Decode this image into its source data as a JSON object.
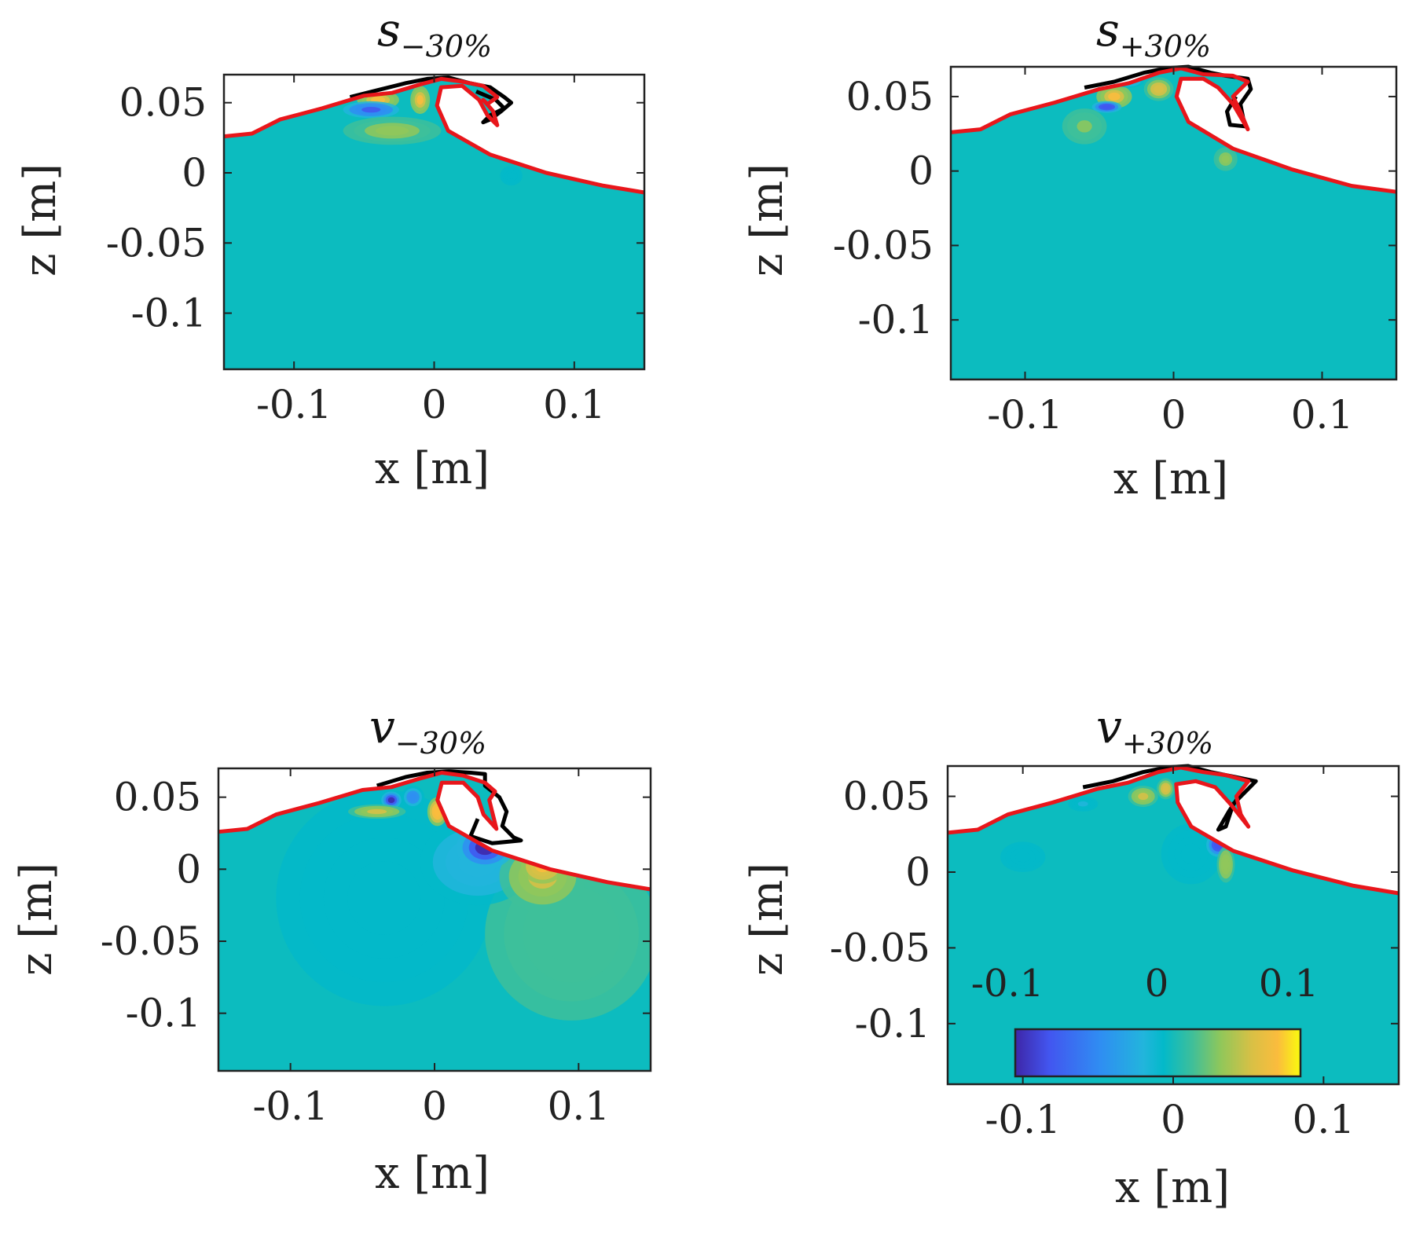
{
  "figure": {
    "colormap": [
      "#3e26a8",
      "#4256f0",
      "#2f8ef2",
      "#22b5dc",
      "#03b9c9",
      "#3ebf9a",
      "#90c75a",
      "#d9c045",
      "#fbbc3d",
      "#f9fb0e"
    ],
    "colors": {
      "water": "#0cbcbf",
      "surface_line": "#e8161b",
      "reference_line": "#000000"
    }
  },
  "chart_data": [
    {
      "type": "heatmap",
      "title_main": "s",
      "title_sub": "−30%",
      "xlabel": "x [m]",
      "ylabel": "z [m]",
      "xlim": [
        -0.15,
        0.15
      ],
      "ylim": [
        -0.14,
        0.07
      ],
      "xticks": [
        -0.1,
        0,
        0.1
      ],
      "xtick_labels": [
        "-0.1",
        "0",
        "0.1"
      ],
      "yticks": [
        0.05,
        0,
        -0.05,
        -0.1
      ],
      "ytick_labels": [
        "0.05",
        "0",
        "-0.05",
        "-0.1"
      ],
      "surface_red": [
        [
          -0.15,
          0.026
        ],
        [
          -0.13,
          0.028
        ],
        [
          -0.11,
          0.038
        ],
        [
          -0.08,
          0.046
        ],
        [
          -0.05,
          0.055
        ],
        [
          -0.03,
          0.057
        ],
        [
          -0.01,
          0.063
        ],
        [
          0.005,
          0.067
        ],
        [
          0.02,
          0.065
        ],
        [
          0.035,
          0.062
        ],
        [
          0.04,
          0.058
        ],
        [
          0.045,
          0.054
        ],
        [
          0.038,
          0.049
        ],
        [
          0.035,
          0.052
        ],
        [
          0.042,
          0.044
        ],
        [
          0.045,
          0.034
        ],
        [
          0.038,
          0.041
        ],
        [
          0.032,
          0.052
        ],
        [
          0.02,
          0.062
        ],
        [
          0.005,
          0.061
        ],
        [
          0.002,
          0.048
        ],
        [
          0.01,
          0.03
        ],
        [
          0.04,
          0.013
        ],
        [
          0.08,
          0.0
        ],
        [
          0.12,
          -0.009
        ],
        [
          0.15,
          -0.014
        ]
      ],
      "surface_black": [
        [
          -0.06,
          0.054
        ],
        [
          -0.04,
          0.059
        ],
        [
          -0.02,
          0.064
        ],
        [
          -0.005,
          0.067
        ],
        [
          0.01,
          0.068
        ],
        [
          0.025,
          0.064
        ],
        [
          0.04,
          0.061
        ],
        [
          0.05,
          0.054
        ],
        [
          0.055,
          0.05
        ],
        [
          0.048,
          0.044
        ],
        [
          0.04,
          0.038
        ],
        [
          0.035,
          0.036
        ],
        [
          0.04,
          0.041
        ],
        [
          0.05,
          0.046
        ],
        [
          0.044,
          0.052
        ],
        [
          0.03,
          0.058
        ]
      ],
      "blobs": [
        {
          "x": -0.04,
          "z": 0.052,
          "rx": 0.015,
          "rz": 0.007,
          "v": 0.1
        },
        {
          "x": -0.01,
          "z": 0.052,
          "rx": 0.007,
          "rz": 0.01,
          "v": 0.11
        },
        {
          "x": -0.045,
          "z": 0.045,
          "rx": 0.02,
          "rz": 0.006,
          "v": -0.12
        },
        {
          "x": -0.03,
          "z": 0.03,
          "rx": 0.035,
          "rz": 0.01,
          "v": 0.05
        },
        {
          "x": 0.055,
          "z": -0.002,
          "rx": 0.008,
          "rz": 0.007,
          "v": -0.03
        }
      ]
    },
    {
      "type": "heatmap",
      "title_main": "s",
      "title_sub": "+30%",
      "xlabel": "x [m]",
      "ylabel": "z [m]",
      "xlim": [
        -0.15,
        0.15
      ],
      "ylim": [
        -0.14,
        0.07
      ],
      "xticks": [
        -0.1,
        0,
        0.1
      ],
      "xtick_labels": [
        "-0.1",
        "0",
        "0.1"
      ],
      "yticks": [
        0.05,
        0,
        -0.05,
        -0.1
      ],
      "ytick_labels": [
        "0.05",
        "0",
        "-0.05",
        "-0.1"
      ],
      "surface_red": [
        [
          -0.15,
          0.026
        ],
        [
          -0.13,
          0.028
        ],
        [
          -0.11,
          0.038
        ],
        [
          -0.08,
          0.046
        ],
        [
          -0.05,
          0.055
        ],
        [
          -0.03,
          0.059
        ],
        [
          -0.01,
          0.066
        ],
        [
          0.005,
          0.069
        ],
        [
          0.02,
          0.065
        ],
        [
          0.04,
          0.064
        ],
        [
          0.05,
          0.06
        ],
        [
          0.04,
          0.05
        ],
        [
          0.045,
          0.04
        ],
        [
          0.05,
          0.028
        ],
        [
          0.04,
          0.045
        ],
        [
          0.03,
          0.056
        ],
        [
          0.02,
          0.062
        ],
        [
          0.005,
          0.062
        ],
        [
          0.002,
          0.05
        ],
        [
          0.01,
          0.033
        ],
        [
          0.04,
          0.015
        ],
        [
          0.08,
          0.001
        ],
        [
          0.12,
          -0.01
        ],
        [
          0.15,
          -0.014
        ]
      ],
      "surface_black": [
        [
          -0.06,
          0.056
        ],
        [
          -0.04,
          0.06
        ],
        [
          -0.02,
          0.066
        ],
        [
          -0.005,
          0.069
        ],
        [
          0.01,
          0.07
        ],
        [
          0.025,
          0.066
        ],
        [
          0.035,
          0.064
        ],
        [
          0.05,
          0.062
        ],
        [
          0.052,
          0.055
        ],
        [
          0.045,
          0.045
        ],
        [
          0.048,
          0.03
        ],
        [
          0.038,
          0.031
        ],
        [
          0.036,
          0.04
        ],
        [
          0.042,
          0.05
        ]
      ],
      "blobs": [
        {
          "x": -0.04,
          "z": 0.05,
          "rx": 0.012,
          "rz": 0.008,
          "v": 0.1
        },
        {
          "x": -0.045,
          "z": 0.043,
          "rx": 0.01,
          "rz": 0.004,
          "v": -0.13
        },
        {
          "x": -0.06,
          "z": 0.03,
          "rx": 0.015,
          "rz": 0.012,
          "v": 0.04
        },
        {
          "x": -0.01,
          "z": 0.055,
          "rx": 0.01,
          "rz": 0.008,
          "v": 0.09
        },
        {
          "x": -0.03,
          "z": 0.06,
          "rx": 0.01,
          "rz": 0.004,
          "v": -0.07
        },
        {
          "x": 0.035,
          "z": 0.008,
          "rx": 0.008,
          "rz": 0.008,
          "v": 0.05
        }
      ]
    },
    {
      "type": "heatmap",
      "title_main": "v",
      "title_sub": "−30%",
      "xlabel": "x [m]",
      "ylabel": "z [m]",
      "xlim": [
        -0.15,
        0.15
      ],
      "ylim": [
        -0.14,
        0.07
      ],
      "xticks": [
        -0.1,
        0,
        0.1
      ],
      "xtick_labels": [
        "-0.1",
        "0",
        "0.1"
      ],
      "yticks": [
        0.05,
        0,
        -0.05,
        -0.1
      ],
      "ytick_labels": [
        "0.05",
        "0",
        "-0.05",
        "-0.1"
      ],
      "surface_red": [
        [
          -0.15,
          0.026
        ],
        [
          -0.13,
          0.028
        ],
        [
          -0.11,
          0.038
        ],
        [
          -0.08,
          0.046
        ],
        [
          -0.05,
          0.055
        ],
        [
          -0.03,
          0.057
        ],
        [
          -0.01,
          0.063
        ],
        [
          0.005,
          0.067
        ],
        [
          0.02,
          0.065
        ],
        [
          0.035,
          0.06
        ],
        [
          0.042,
          0.054
        ],
        [
          0.038,
          0.048
        ],
        [
          0.04,
          0.04
        ],
        [
          0.043,
          0.028
        ],
        [
          0.034,
          0.038
        ],
        [
          0.03,
          0.05
        ],
        [
          0.02,
          0.06
        ],
        [
          0.005,
          0.06
        ],
        [
          0.002,
          0.048
        ],
        [
          0.01,
          0.03
        ],
        [
          0.04,
          0.013
        ],
        [
          0.08,
          0.0
        ],
        [
          0.12,
          -0.009
        ],
        [
          0.15,
          -0.014
        ]
      ],
      "surface_black": [
        [
          -0.04,
          0.058
        ],
        [
          -0.02,
          0.064
        ],
        [
          -0.005,
          0.067
        ],
        [
          0.01,
          0.068
        ],
        [
          0.025,
          0.067
        ],
        [
          0.035,
          0.066
        ],
        [
          0.035,
          0.058
        ],
        [
          0.045,
          0.05
        ],
        [
          0.05,
          0.04
        ],
        [
          0.047,
          0.03
        ],
        [
          0.055,
          0.022
        ],
        [
          0.06,
          0.02
        ],
        [
          0.04,
          0.018
        ],
        [
          0.025,
          0.023
        ],
        [
          0.03,
          0.035
        ]
      ],
      "blobs": [
        {
          "x": -0.035,
          "z": -0.02,
          "rx": 0.075,
          "rz": 0.075,
          "v": -0.025
        },
        {
          "x": 0.095,
          "z": -0.045,
          "rx": 0.06,
          "rz": 0.06,
          "v": 0.025
        },
        {
          "x": 0.03,
          "z": 0.005,
          "rx": 0.04,
          "rz": 0.03,
          "v": -0.06
        },
        {
          "x": 0.075,
          "z": -0.005,
          "rx": 0.03,
          "rz": 0.025,
          "v": 0.07
        },
        {
          "x": 0.035,
          "z": 0.015,
          "rx": 0.02,
          "rz": 0.015,
          "v": -0.15
        },
        {
          "x": 0.075,
          "z": 0.002,
          "rx": 0.015,
          "rz": 0.012,
          "v": 0.12
        },
        {
          "x": -0.03,
          "z": 0.048,
          "rx": 0.007,
          "rz": 0.006,
          "v": -0.15
        },
        {
          "x": -0.015,
          "z": 0.05,
          "rx": 0.008,
          "rz": 0.008,
          "v": -0.09
        },
        {
          "x": -0.04,
          "z": 0.04,
          "rx": 0.02,
          "rz": 0.005,
          "v": 0.08
        },
        {
          "x": 0.002,
          "z": 0.04,
          "rx": 0.007,
          "rz": 0.01,
          "v": 0.13
        }
      ]
    },
    {
      "type": "heatmap",
      "title_main": "v",
      "title_sub": "+30%",
      "xlabel": "x [m]",
      "ylabel": "z [m]",
      "xlim": [
        -0.15,
        0.15
      ],
      "ylim": [
        -0.14,
        0.07
      ],
      "xticks": [
        -0.1,
        0,
        0.1
      ],
      "xtick_labels": [
        "-0.1",
        "0",
        "0.1"
      ],
      "yticks": [
        0.05,
        0,
        -0.05,
        -0.1
      ],
      "ytick_labels": [
        "0.05",
        "0",
        "-0.05",
        "-0.1"
      ],
      "surface_red": [
        [
          -0.15,
          0.026
        ],
        [
          -0.13,
          0.028
        ],
        [
          -0.11,
          0.038
        ],
        [
          -0.08,
          0.046
        ],
        [
          -0.05,
          0.055
        ],
        [
          -0.03,
          0.059
        ],
        [
          -0.01,
          0.066
        ],
        [
          0.005,
          0.069
        ],
        [
          0.02,
          0.066
        ],
        [
          0.035,
          0.064
        ],
        [
          0.05,
          0.06
        ],
        [
          0.042,
          0.05
        ],
        [
          0.045,
          0.038
        ],
        [
          0.05,
          0.03
        ],
        [
          0.038,
          0.045
        ],
        [
          0.028,
          0.056
        ],
        [
          0.015,
          0.06
        ],
        [
          0.002,
          0.058
        ],
        [
          0.003,
          0.046
        ],
        [
          0.012,
          0.03
        ],
        [
          0.04,
          0.014
        ],
        [
          0.08,
          0.001
        ],
        [
          0.12,
          -0.009
        ],
        [
          0.15,
          -0.014
        ]
      ],
      "surface_black": [
        [
          -0.06,
          0.056
        ],
        [
          -0.04,
          0.06
        ],
        [
          -0.02,
          0.066
        ],
        [
          -0.005,
          0.069
        ],
        [
          0.01,
          0.07
        ],
        [
          0.025,
          0.066
        ],
        [
          0.04,
          0.063
        ],
        [
          0.055,
          0.06
        ],
        [
          0.05,
          0.055
        ],
        [
          0.04,
          0.045
        ],
        [
          0.035,
          0.03
        ],
        [
          0.03,
          0.028
        ],
        [
          0.037,
          0.04
        ],
        [
          0.045,
          0.052
        ]
      ],
      "blobs": [
        {
          "x": 0.012,
          "z": 0.012,
          "rx": 0.02,
          "rz": 0.02,
          "v": -0.02
        },
        {
          "x": -0.1,
          "z": 0.01,
          "rx": 0.015,
          "rz": 0.01,
          "v": -0.02
        },
        {
          "x": 0.03,
          "z": 0.018,
          "rx": 0.008,
          "rz": 0.008,
          "v": -0.13
        },
        {
          "x": 0.035,
          "z": 0.005,
          "rx": 0.006,
          "rz": 0.012,
          "v": 0.06
        },
        {
          "x": -0.02,
          "z": 0.05,
          "rx": 0.01,
          "rz": 0.007,
          "v": 0.08
        },
        {
          "x": -0.005,
          "z": 0.055,
          "rx": 0.006,
          "rz": 0.007,
          "v": 0.09
        },
        {
          "x": -0.06,
          "z": 0.045,
          "rx": 0.01,
          "rz": 0.005,
          "v": -0.04
        }
      ],
      "colorbar": {
        "range": [
          -0.1,
          0.1
        ],
        "ticks": [
          -0.1,
          0,
          0.1
        ],
        "tick_labels": [
          "-0.1",
          "0",
          "0.1"
        ]
      }
    }
  ]
}
